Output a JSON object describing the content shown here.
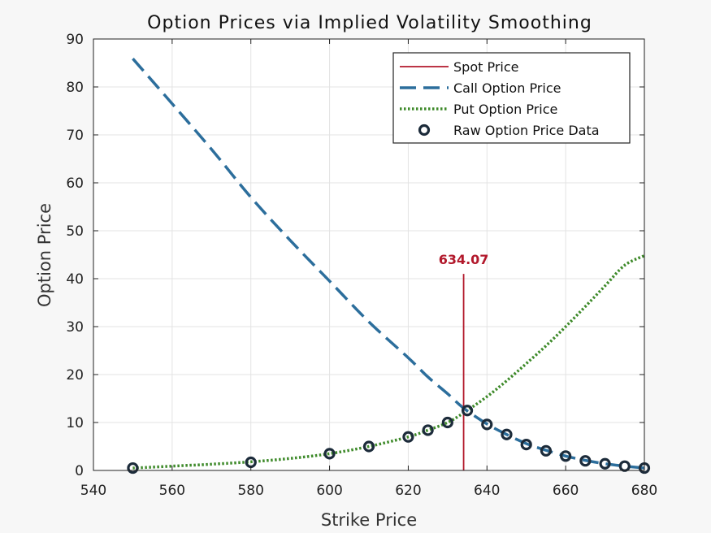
{
  "chart_data": {
    "type": "line",
    "title": "Option Prices via Implied Volatility Smoothing",
    "xlabel": "Strike Price",
    "ylabel": "Option Price",
    "xlim": [
      540,
      680
    ],
    "ylim": [
      0,
      90
    ],
    "xticks": [
      540,
      560,
      580,
      600,
      620,
      640,
      660,
      680
    ],
    "yticks": [
      0,
      10,
      20,
      30,
      40,
      50,
      60,
      70,
      80,
      90
    ],
    "grid": true,
    "legend_position": "top-right",
    "colors": {
      "spot": "#b2182b",
      "call": "#2c6e9c",
      "put": "#3e8a2a",
      "raw": "#1c2b3a"
    },
    "spot_price": {
      "label": "634.07",
      "value": 634.07,
      "y_range": [
        0,
        41
      ]
    },
    "legend": [
      {
        "name": "Spot Price",
        "style": "solid"
      },
      {
        "name": "Call Option Price",
        "style": "dashed"
      },
      {
        "name": "Put Option Price",
        "style": "dotted"
      },
      {
        "name": "Raw Option Price Data",
        "style": "marker"
      }
    ],
    "series": [
      {
        "name": "Call Option Price",
        "x": [
          550,
          560,
          570,
          580,
          590,
          600,
          610,
          620,
          625,
          630,
          634.07,
          640,
          645,
          650,
          655,
          660,
          665,
          670,
          675,
          680
        ],
        "values": [
          85.9,
          76.5,
          67.0,
          57.0,
          48.0,
          39.5,
          31.0,
          23.5,
          19.5,
          16.0,
          13.0,
          9.7,
          7.5,
          5.6,
          4.2,
          3.0,
          2.1,
          1.4,
          0.9,
          0.5
        ]
      },
      {
        "name": "Put Option Price",
        "x": [
          550,
          560,
          570,
          580,
          590,
          600,
          610,
          620,
          625,
          630,
          634.07,
          640,
          645,
          650,
          655,
          660,
          665,
          670,
          675,
          680
        ],
        "values": [
          0.5,
          0.9,
          1.3,
          1.8,
          2.5,
          3.5,
          5.0,
          7.0,
          8.4,
          10.0,
          12.0,
          15.4,
          18.7,
          22.3,
          26.0,
          30.0,
          34.2,
          38.5,
          42.8,
          44.8
        ]
      },
      {
        "name": "Raw Option Price Data",
        "x": [
          550,
          580,
          600,
          610,
          620,
          625,
          630,
          635,
          640,
          645,
          650,
          655,
          660,
          665,
          670,
          675,
          680
        ],
        "values": [
          0.5,
          1.7,
          3.5,
          5.0,
          7.0,
          8.4,
          10.0,
          12.5,
          9.6,
          7.5,
          5.4,
          4.1,
          3.0,
          2.0,
          1.4,
          0.9,
          0.5
        ]
      }
    ]
  }
}
